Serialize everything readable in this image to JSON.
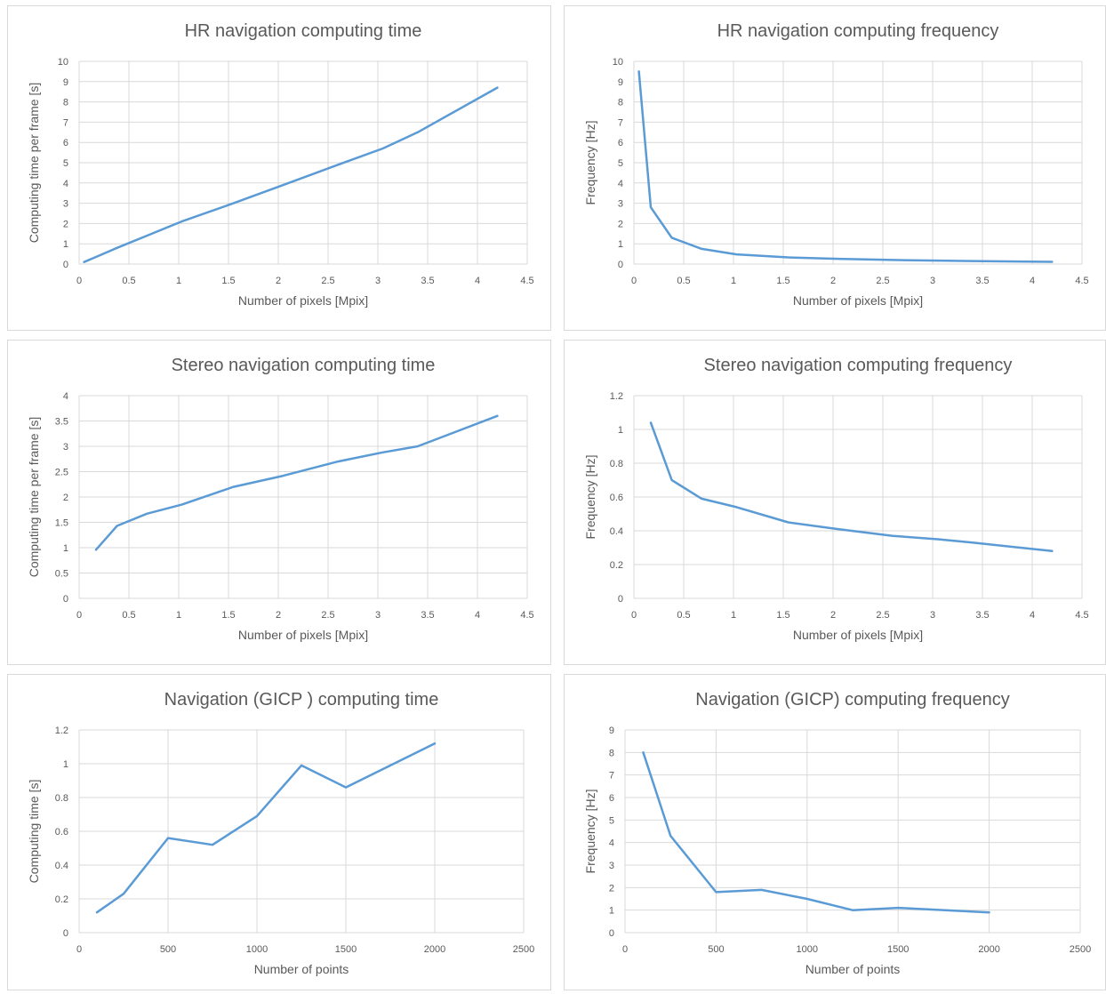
{
  "chart_data": [
    {
      "type": "line",
      "title": "HR navigation computing time",
      "xlabel": "Number of pixels [Mpix]",
      "ylabel": "Computing time per frame [s]",
      "xlim": [
        0,
        4.5
      ],
      "xticks": [
        0,
        0.5,
        1,
        1.5,
        2,
        2.5,
        3,
        3.5,
        4,
        4.5
      ],
      "xtick_labels": [
        "0",
        "0.5",
        "1",
        "1.5",
        "2",
        "2.5",
        "3",
        "3.5",
        "4",
        "4.5"
      ],
      "ylim": [
        0,
        10
      ],
      "yticks": [
        0,
        1,
        2,
        3,
        4,
        5,
        6,
        7,
        8,
        9,
        10
      ],
      "ytick_labels": [
        "0",
        "1",
        "2",
        "3",
        "4",
        "5",
        "6",
        "7",
        "8",
        "9",
        "10"
      ],
      "grid": true,
      "color": "#5b9bd5",
      "series": [
        {
          "x": [
            0.05,
            0.17,
            0.38,
            0.68,
            1.03,
            1.55,
            2.05,
            2.6,
            3.05,
            3.4,
            4.2
          ],
          "y": [
            0.1,
            0.35,
            0.8,
            1.4,
            2.1,
            3.0,
            3.9,
            4.9,
            5.7,
            6.5,
            8.7
          ]
        }
      ]
    },
    {
      "type": "line",
      "title": "HR navigation computing frequency",
      "xlabel": "Number of pixels [Mpix]",
      "ylabel": "Frequency [Hz]",
      "xlim": [
        0,
        4.5
      ],
      "xticks": [
        0,
        0.5,
        1,
        1.5,
        2,
        2.5,
        3,
        3.5,
        4,
        4.5
      ],
      "xtick_labels": [
        "0",
        "0.5",
        "1",
        "1.5",
        "2",
        "2.5",
        "3",
        "3.5",
        "4",
        "4.5"
      ],
      "ylim": [
        0,
        10
      ],
      "yticks": [
        0,
        1,
        2,
        3,
        4,
        5,
        6,
        7,
        8,
        9,
        10
      ],
      "ytick_labels": [
        "0",
        "1",
        "2",
        "3",
        "4",
        "5",
        "6",
        "7",
        "8",
        "9",
        "10"
      ],
      "grid": true,
      "color": "#5b9bd5",
      "series": [
        {
          "x": [
            0.05,
            0.17,
            0.38,
            0.68,
            1.03,
            1.55,
            2.05,
            2.6,
            3.05,
            3.4,
            4.2
          ],
          "y": [
            9.5,
            2.8,
            1.3,
            0.75,
            0.48,
            0.33,
            0.26,
            0.2,
            0.17,
            0.15,
            0.11
          ]
        }
      ]
    },
    {
      "type": "line",
      "title": "Stereo navigation computing time",
      "xlabel": "Number of pixels [Mpix]",
      "ylabel": "Computing time per frame [s]",
      "xlim": [
        0,
        4.5
      ],
      "xticks": [
        0,
        0.5,
        1,
        1.5,
        2,
        2.5,
        3,
        3.5,
        4,
        4.5
      ],
      "xtick_labels": [
        "0",
        "0.5",
        "1",
        "1.5",
        "2",
        "2.5",
        "3",
        "3.5",
        "4",
        "4.5"
      ],
      "ylim": [
        0,
        4
      ],
      "yticks": [
        0,
        0.5,
        1,
        1.5,
        2,
        2.5,
        3,
        3.5,
        4
      ],
      "ytick_labels": [
        "0",
        "0.5",
        "1",
        "1.5",
        "2",
        "2.5",
        "3",
        "3.5",
        "4"
      ],
      "grid": true,
      "color": "#5b9bd5",
      "series": [
        {
          "x": [
            0.17,
            0.38,
            0.68,
            1.03,
            1.55,
            2.05,
            2.6,
            3.05,
            3.4,
            4.2
          ],
          "y": [
            0.96,
            1.43,
            1.67,
            1.85,
            2.2,
            2.42,
            2.7,
            2.88,
            3.0,
            3.6
          ]
        }
      ]
    },
    {
      "type": "line",
      "title": "Stereo navigation computing frequency",
      "xlabel": "Number of pixels [Mpix]",
      "ylabel": "Frequency [Hz]",
      "xlim": [
        0,
        4.5
      ],
      "xticks": [
        0,
        0.5,
        1,
        1.5,
        2,
        2.5,
        3,
        3.5,
        4,
        4.5
      ],
      "xtick_labels": [
        "0",
        "0.5",
        "1",
        "1.5",
        "2",
        "2.5",
        "3",
        "3.5",
        "4",
        "4.5"
      ],
      "ylim": [
        0,
        1.2
      ],
      "yticks": [
        0,
        0.2,
        0.4,
        0.6,
        0.8,
        1,
        1.2
      ],
      "ytick_labels": [
        "0",
        "0.2",
        "0.4",
        "0.6",
        "0.8",
        "1",
        "1.2"
      ],
      "grid": true,
      "color": "#5b9bd5",
      "series": [
        {
          "x": [
            0.17,
            0.38,
            0.68,
            1.03,
            1.55,
            2.05,
            2.6,
            3.05,
            3.4,
            4.2
          ],
          "y": [
            1.04,
            0.7,
            0.59,
            0.54,
            0.45,
            0.41,
            0.37,
            0.35,
            0.33,
            0.28
          ]
        }
      ]
    },
    {
      "type": "line",
      "title": "Navigation (GICP ) computing time",
      "xlabel": "Number of points",
      "ylabel": "Computing time [s]",
      "xlim": [
        0,
        2500
      ],
      "xticks": [
        0,
        500,
        1000,
        1500,
        2000,
        2500
      ],
      "xtick_labels": [
        "0",
        "500",
        "1000",
        "1500",
        "2000",
        "2500"
      ],
      "ylim": [
        0,
        1.2
      ],
      "yticks": [
        0,
        0.2,
        0.4,
        0.6,
        0.8,
        1,
        1.2
      ],
      "ytick_labels": [
        "0",
        "0.2",
        "0.4",
        "0.6",
        "0.8",
        "1",
        "1.2"
      ],
      "grid": true,
      "color": "#5b9bd5",
      "series": [
        {
          "x": [
            100,
            250,
            500,
            750,
            1000,
            1250,
            1500,
            2000
          ],
          "y": [
            0.12,
            0.23,
            0.56,
            0.52,
            0.69,
            0.99,
            0.86,
            1.12
          ]
        }
      ]
    },
    {
      "type": "line",
      "title": "Navigation (GICP) computing frequency",
      "xlabel": "Number of points",
      "ylabel": "Frequency [Hz]",
      "xlim": [
        0,
        2500
      ],
      "xticks": [
        0,
        500,
        1000,
        1500,
        2000,
        2500
      ],
      "xtick_labels": [
        "0",
        "500",
        "1000",
        "1500",
        "2000",
        "2500"
      ],
      "ylim": [
        0,
        9
      ],
      "yticks": [
        0,
        1,
        2,
        3,
        4,
        5,
        6,
        7,
        8,
        9
      ],
      "ytick_labels": [
        "0",
        "1",
        "2",
        "3",
        "4",
        "5",
        "6",
        "7",
        "8",
        "9"
      ],
      "grid": true,
      "color": "#5b9bd5",
      "series": [
        {
          "x": [
            100,
            250,
            500,
            750,
            1000,
            1250,
            1500,
            2000
          ],
          "y": [
            8.0,
            4.3,
            1.8,
            1.9,
            1.5,
            1.0,
            1.1,
            0.9
          ]
        }
      ]
    }
  ]
}
